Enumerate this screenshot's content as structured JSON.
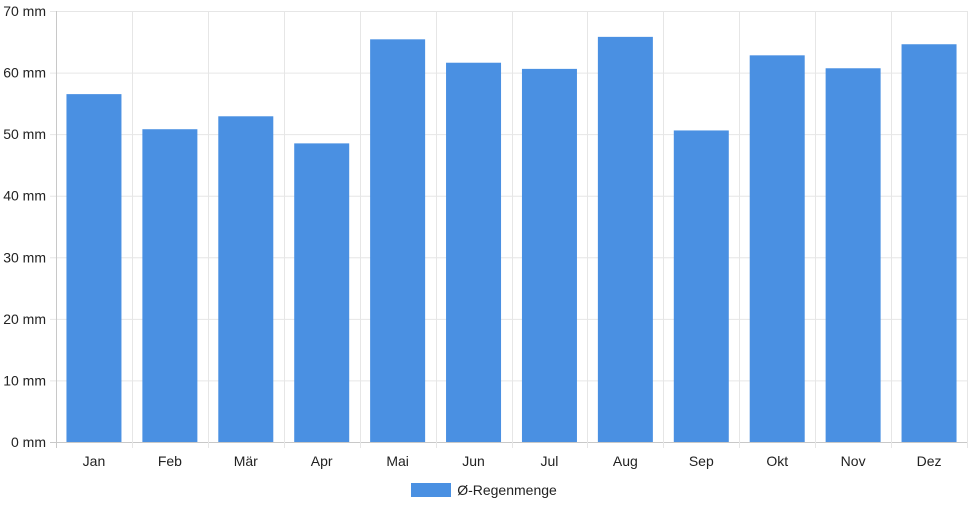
{
  "chart_data": {
    "type": "bar",
    "categories": [
      "Jan",
      "Feb",
      "Mär",
      "Apr",
      "Mai",
      "Jun",
      "Jul",
      "Aug",
      "Sep",
      "Okt",
      "Nov",
      "Dez"
    ],
    "series": [
      {
        "name": "Ø-Regenmenge",
        "values": [
          56.5,
          50.8,
          52.9,
          48.5,
          65.4,
          61.6,
          60.6,
          65.8,
          50.6,
          62.8,
          60.7,
          64.6
        ],
        "color": "#4a90e2"
      }
    ],
    "y_ticks": [
      "0 mm",
      "10 mm",
      "20 mm",
      "30 mm",
      "40 mm",
      "50 mm",
      "60 mm",
      "70 mm"
    ],
    "ylim": [
      0,
      70
    ],
    "grid": true,
    "legend": "bottom-center"
  }
}
